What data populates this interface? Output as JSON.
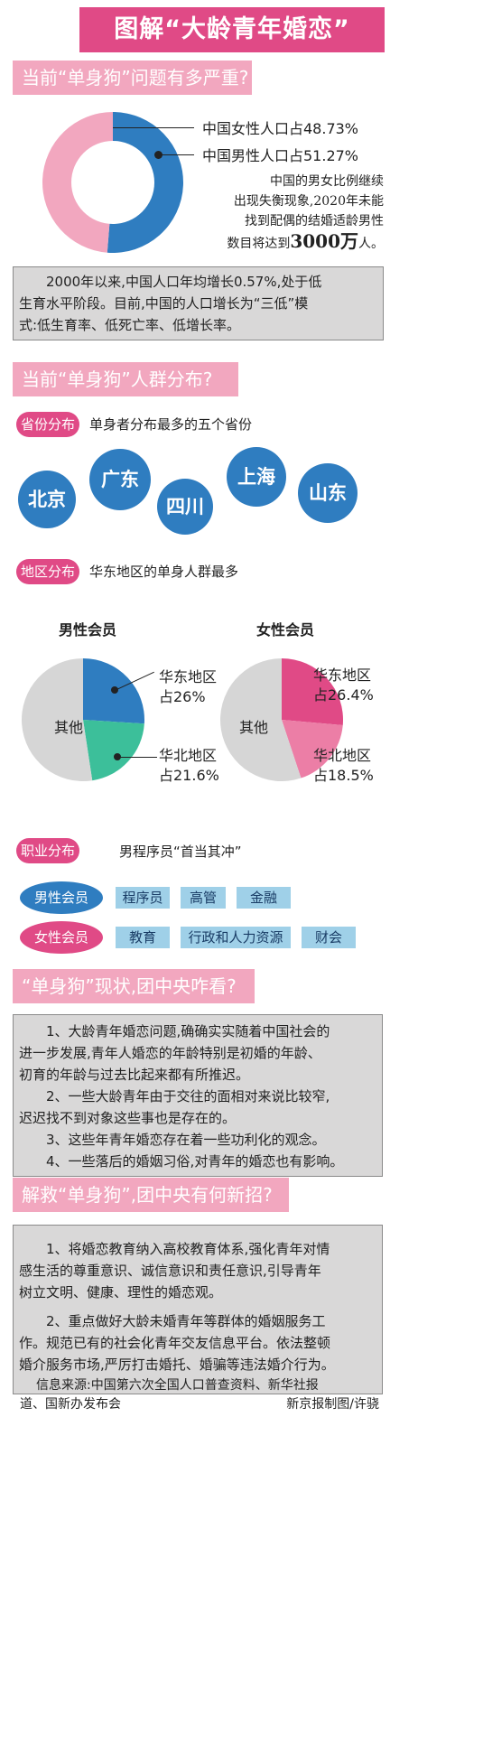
{
  "title": "图解“大龄青年婚恋”",
  "section1": {
    "heading": "当前“单身狗”问题有多严重?",
    "female_label": "中国女性人口占48.73%",
    "male_label": "中国男性人口占51.27%",
    "female_share": 48.73,
    "male_share": 51.27,
    "note_line1": "中国的男女比例继续",
    "note_line2": "出现失衡现象,2020年未能",
    "note_line3": "找到配偶的结婚适龄男性",
    "note_line4a": "数目将达到",
    "note_line4b": "3000万",
    "note_line4c": "人。",
    "box_line1": "2000年以来,中国人口年均增长0.57%,处于低",
    "box_line2": "生育水平阶段。目前,中国的人口增长为“三低”模",
    "box_line3": "式:低生育率、低死亡率、低增长率。"
  },
  "section2": {
    "heading": "当前“单身狗”人群分布?",
    "province_pill": "省份分布",
    "province_text": "单身者分布最多的五个省份",
    "provinces": [
      "北京",
      "广东",
      "四川",
      "上海",
      "山东"
    ],
    "region_pill": "地区分布",
    "region_text": "华东地区的单身人群最多",
    "male_title": "男性会员",
    "female_title": "女性会员",
    "male_pie": {
      "east_share": 26,
      "north_share": 21.6,
      "east_label": "华东地区",
      "east_pct": "占26%",
      "north_label": "华北地区",
      "north_pct": "占21.6%",
      "other_label": "其他"
    },
    "female_pie": {
      "east_share": 26.4,
      "north_share": 18.5,
      "east_label": "华东地区",
      "east_pct": "占26.4%",
      "north_label": "华北地区",
      "north_pct": "占18.5%",
      "other_label": "其他"
    },
    "job_pill": "职业分布",
    "job_text": "男程序员“首当其冲”",
    "male_member": "男性会员",
    "female_member": "女性会员",
    "male_jobs": [
      "程序员",
      "高管",
      "金融"
    ],
    "female_jobs": [
      "教育",
      "行政和人力资源",
      "财会"
    ]
  },
  "section3": {
    "heading": "“单身狗”现状,团中央咋看?",
    "lines": [
      "1、大龄青年婚恋问题,确确实实随着中国社会的",
      "进一步发展,青年人婚恋的年龄特别是初婚的年龄、",
      "初育的年龄与过去比起来都有所推迟。",
      "2、一些大龄青年由于交往的面相对来说比较窄,",
      "迟迟找不到对象这些事也是存在的。",
      "3、这些年青年婚恋存在着一些功利化的观念。",
      "4、一些落后的婚姻习俗,对青年的婚恋也有影响。"
    ]
  },
  "section4": {
    "heading": "解救“单身狗”,团中央有何新招?",
    "lines": [
      "1、将婚恋教育纳入高校教育体系,强化青年对情",
      "感生活的尊重意识、诚信意识和责任意识,引导青年",
      "树立文明、健康、理性的婚恋观。",
      "2、重点做好大龄未婚青年等群体的婚姻服务工",
      "作。规范已有的社会化青年交友信息平台。依法整顿",
      "婚介服务市场,严厉打击婚托、婚骗等违法婚介行为。"
    ]
  },
  "footer": {
    "line1": "信息来源:中国第六次全国人口普查资料、新华社报",
    "line2a": "道、国新办发布会",
    "line2b": "新京报制图/许骁"
  },
  "colors": {
    "pink": "#e04a86",
    "light_pink": "#f2a7bf",
    "blue": "#2f7dc0",
    "teal": "#3cbf9a",
    "gray": "#d9d8d8"
  }
}
